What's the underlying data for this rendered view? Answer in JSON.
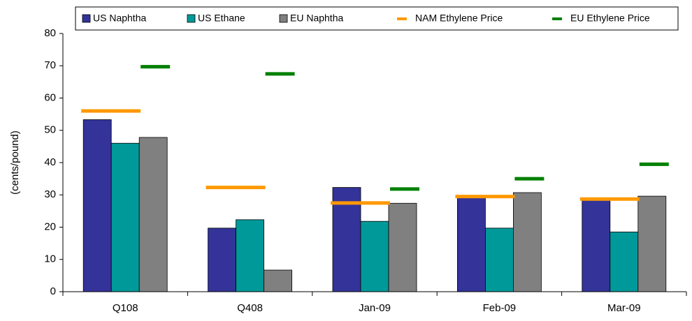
{
  "chart_data": {
    "type": "bar",
    "y_label": "(cents/pound)",
    "categories": [
      "Q108",
      "Q408",
      "Jan-09",
      "Feb-09",
      "Mar-09"
    ],
    "series": [
      {
        "name": "US Naphtha",
        "type": "bar",
        "color": "#333399",
        "values": [
          53.3,
          19.7,
          32.3,
          29.5,
          28.5
        ]
      },
      {
        "name": "US Ethane",
        "type": "bar",
        "color": "#009999",
        "values": [
          46,
          22.3,
          21.8,
          19.7,
          18.5
        ]
      },
      {
        "name": "EU Naphtha",
        "type": "bar",
        "color": "#808080",
        "values": [
          47.8,
          6.7,
          27.4,
          30.7,
          29.6
        ]
      },
      {
        "name": "NAM Ethylene Price",
        "type": "line",
        "color": "#ff9900",
        "values": [
          56,
          32.3,
          27.5,
          29.5,
          28.7
        ]
      },
      {
        "name": "EU Ethylene Price",
        "type": "line",
        "color": "#008000",
        "values": [
          69.7,
          67.5,
          31.8,
          35,
          39.5
        ]
      }
    ],
    "ylim": [
      0,
      80
    ],
    "yticks": [
      0,
      10,
      20,
      30,
      40,
      50,
      60,
      70,
      80
    ],
    "legend": "top"
  }
}
